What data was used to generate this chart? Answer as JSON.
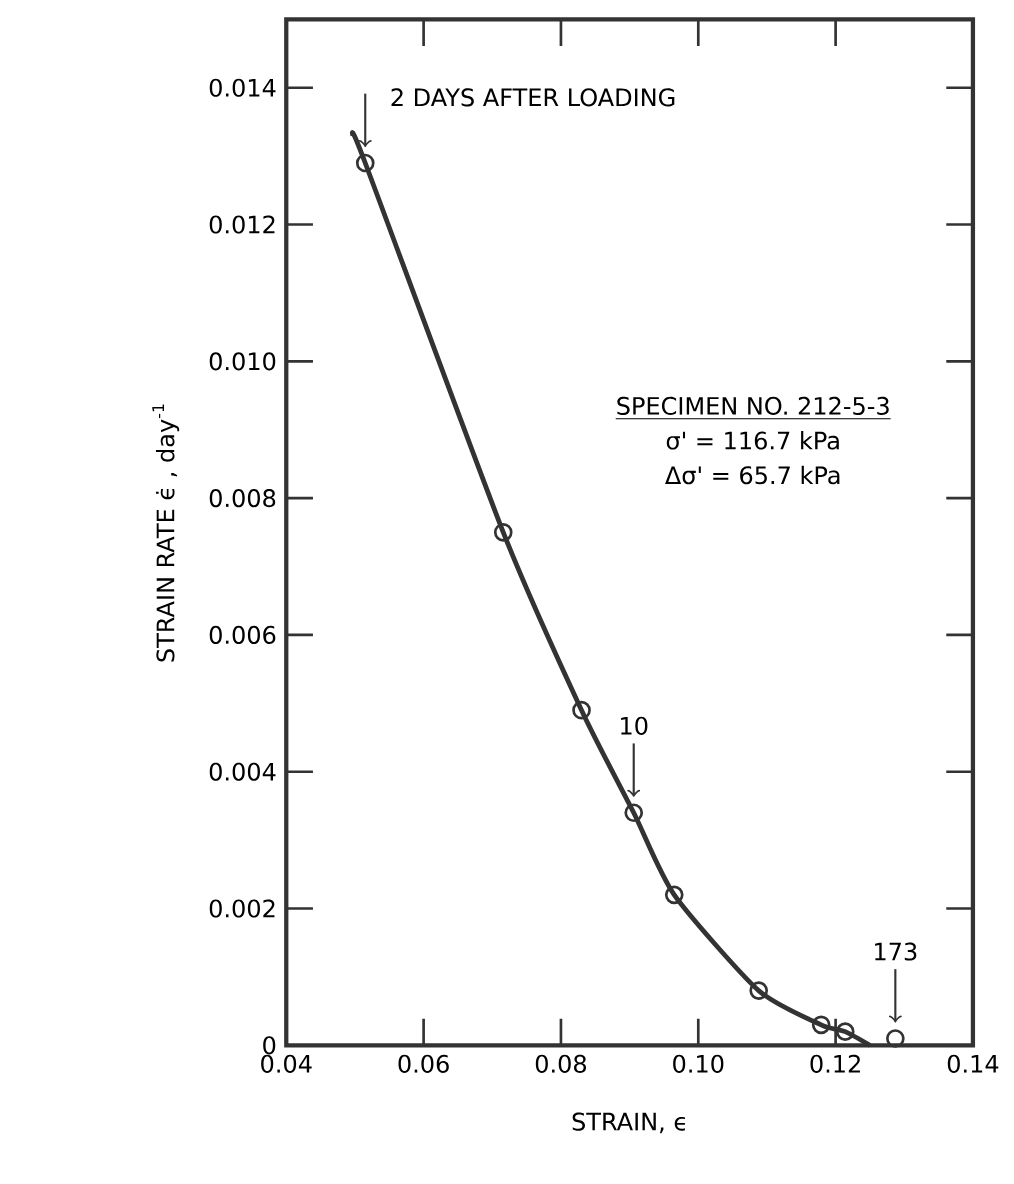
{
  "chart_data": {
    "type": "scatter",
    "xlabel": "STRAIN, ϵ",
    "ylabel": "STRAIN RATE ϵ̇ ,  day$^{-1}$",
    "xlim": [
      0.04,
      0.14
    ],
    "ylim": [
      0,
      0.015
    ],
    "xticks": [
      0.04,
      0.06,
      0.08,
      {
        "value": 0.1,
        "label": "0.10"
      },
      0.12,
      0.14
    ],
    "yticks": [
      0,
      0.002,
      0.004,
      0.006,
      0.008,
      {
        "value": 0.01,
        "label": "0.010"
      },
      0.012,
      0.014
    ],
    "grid": false,
    "series": [
      {
        "type": "line",
        "color": "#333333",
        "line_style": "solid",
        "x": [
          0.0497,
          0.0515,
          0.0716,
          0.083,
          0.0906,
          0.0965,
          0.1088,
          0.1179,
          0.1214,
          0.125
        ],
        "values": [
          0.0133,
          0.0129,
          0.0075,
          0.0049,
          0.0034,
          0.0022,
          0.0008,
          0.0003,
          0.0002,
          0
        ]
      },
      {
        "color": "#333333",
        "marker": "circle",
        "x": [
          0.0515,
          0.0716,
          0.083,
          0.0906,
          0.0965,
          0.1088,
          0.1179,
          0.1214,
          0.1287
        ],
        "values": [
          0.0129,
          0.0075,
          0.0049,
          0.0034,
          0.0022,
          0.0008,
          0.0003,
          0.0002,
          0.0001
        ]
      }
    ],
    "annotations": [
      {
        "text": "2 DAYS AFTER LOADING",
        "x": 0.0515,
        "y": 0.0129
      },
      {
        "text": "10",
        "x": 0.0906,
        "y": 0.0034
      },
      {
        "text": "173",
        "x": 0.1287,
        "y": 0.0001
      },
      "SPECIMEN NO. 212-5-3",
      "σ' = 116.7 kPa",
      "Δσ' = 65.7 kPa"
    ]
  }
}
